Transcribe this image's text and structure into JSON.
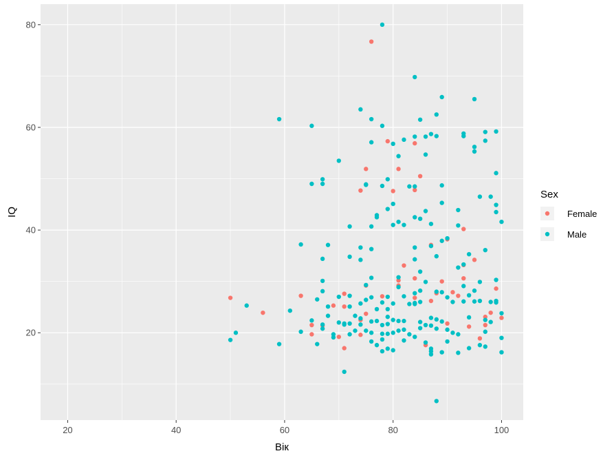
{
  "chart_data": {
    "type": "scatter",
    "title": "",
    "xlabel": "Вік",
    "ylabel": "IQ",
    "xlim": [
      15,
      104
    ],
    "ylim": [
      3,
      84
    ],
    "x_ticks": [
      20,
      40,
      60,
      80,
      100
    ],
    "y_ticks": [
      20,
      40,
      60,
      80
    ],
    "x_tick_labels": [
      "20",
      "40",
      "60",
      "80",
      "100"
    ],
    "y_tick_labels": [
      "20",
      "40",
      "60",
      "80"
    ],
    "grid": true,
    "background": "#ebebeb",
    "grid_color": "#ffffff",
    "legend": {
      "title": "Sex",
      "placement": "right",
      "entries": [
        {
          "label": "Female",
          "color": "#f8766d"
        },
        {
          "label": "Male",
          "color": "#00bfc4"
        }
      ]
    },
    "series": [
      {
        "name": "Female",
        "color": "#f8766d",
        "points": [
          [
            50,
            26.8
          ],
          [
            56,
            23.9
          ],
          [
            63,
            27.2
          ],
          [
            65,
            19.7
          ],
          [
            65,
            21.5
          ],
          [
            67,
            21.4
          ],
          [
            69,
            25.3
          ],
          [
            70,
            19.2
          ],
          [
            71,
            17.0
          ],
          [
            71,
            25.1
          ],
          [
            71,
            27.6
          ],
          [
            74,
            19.6
          ],
          [
            74,
            22.5
          ],
          [
            74,
            47.7
          ],
          [
            75,
            51.9
          ],
          [
            75,
            29.2
          ],
          [
            75,
            23.7
          ],
          [
            76,
            76.7
          ],
          [
            78,
            27.1
          ],
          [
            79,
            57.3
          ],
          [
            80,
            47.6
          ],
          [
            81,
            29.2
          ],
          [
            81,
            30.2
          ],
          [
            81,
            51.9
          ],
          [
            82,
            33.1
          ],
          [
            84,
            56.9
          ],
          [
            84,
            47.8
          ],
          [
            84,
            30.6
          ],
          [
            84,
            26.8
          ],
          [
            85,
            50.5
          ],
          [
            86,
            17.6
          ],
          [
            87,
            37.1
          ],
          [
            87,
            26.2
          ],
          [
            88,
            27.7
          ],
          [
            89,
            30.0
          ],
          [
            90,
            38.2
          ],
          [
            90,
            21.8
          ],
          [
            91,
            27.9
          ],
          [
            92,
            27.2
          ],
          [
            93,
            40.2
          ],
          [
            93,
            33.2
          ],
          [
            93,
            30.6
          ],
          [
            94,
            21.2
          ],
          [
            95,
            34.2
          ],
          [
            96,
            18.9
          ],
          [
            97,
            21.5
          ],
          [
            97,
            23.1
          ],
          [
            98,
            23.9
          ],
          [
            99,
            28.6
          ],
          [
            100,
            22.9
          ]
        ]
      },
      {
        "name": "Male",
        "color": "#00bfc4",
        "points": [
          [
            50,
            18.6
          ],
          [
            51,
            20.0
          ],
          [
            53,
            25.3
          ],
          [
            59,
            61.6
          ],
          [
            59,
            17.8
          ],
          [
            61,
            24.3
          ],
          [
            63,
            37.2
          ],
          [
            63,
            20.2
          ],
          [
            65,
            60.3
          ],
          [
            65,
            49.0
          ],
          [
            65,
            22.4
          ],
          [
            66,
            26.5
          ],
          [
            66,
            17.8
          ],
          [
            67,
            49.9
          ],
          [
            67,
            49.0
          ],
          [
            67,
            34.4
          ],
          [
            67,
            30.1
          ],
          [
            67,
            28.1
          ],
          [
            67,
            21.6
          ],
          [
            67,
            20.8
          ],
          [
            68,
            37.1
          ],
          [
            68,
            25.1
          ],
          [
            68,
            23.3
          ],
          [
            69,
            19.7
          ],
          [
            69,
            19.1
          ],
          [
            70,
            53.5
          ],
          [
            70,
            27.0
          ],
          [
            70,
            22.0
          ],
          [
            71,
            21.8
          ],
          [
            71,
            21.6
          ],
          [
            71,
            12.4
          ],
          [
            72,
            40.7
          ],
          [
            72,
            34.8
          ],
          [
            72,
            27.2
          ],
          [
            72,
            25.1
          ],
          [
            72,
            21.8
          ],
          [
            72,
            19.7
          ],
          [
            73,
            23.3
          ],
          [
            73,
            20.4
          ],
          [
            74,
            63.5
          ],
          [
            74,
            36.6
          ],
          [
            74,
            34.2
          ],
          [
            74,
            25.7
          ],
          [
            74,
            22.8
          ],
          [
            74,
            21.6
          ],
          [
            75,
            48.8
          ],
          [
            75,
            48.9
          ],
          [
            75,
            29.3
          ],
          [
            75,
            26.4
          ],
          [
            75,
            20.4
          ],
          [
            76,
            61.6
          ],
          [
            76,
            57.1
          ],
          [
            76,
            40.7
          ],
          [
            76,
            36.3
          ],
          [
            76,
            30.7
          ],
          [
            76,
            26.9
          ],
          [
            76,
            22.2
          ],
          [
            76,
            20.0
          ],
          [
            76,
            18.3
          ],
          [
            77,
            42.9
          ],
          [
            77,
            42.5
          ],
          [
            77,
            24.6
          ],
          [
            77,
            22.3
          ],
          [
            77,
            17.6
          ],
          [
            78,
            80.0
          ],
          [
            78,
            60.3
          ],
          [
            78,
            48.6
          ],
          [
            78,
            25.9
          ],
          [
            78,
            21.5
          ],
          [
            78,
            19.8
          ],
          [
            78,
            18.7
          ],
          [
            78,
            16.4
          ],
          [
            79,
            49.9
          ],
          [
            79,
            44.1
          ],
          [
            79,
            27.0
          ],
          [
            79,
            24.6
          ],
          [
            79,
            23.1
          ],
          [
            79,
            21.7
          ],
          [
            79,
            19.8
          ],
          [
            79,
            16.9
          ],
          [
            80,
            56.8
          ],
          [
            80,
            45.1
          ],
          [
            80,
            41.0
          ],
          [
            80,
            25.7
          ],
          [
            80,
            22.5
          ],
          [
            80,
            20.0
          ],
          [
            80,
            16.6
          ],
          [
            81,
            54.4
          ],
          [
            81,
            41.6
          ],
          [
            81,
            30.8
          ],
          [
            81,
            28.9
          ],
          [
            81,
            22.3
          ],
          [
            81,
            20.4
          ],
          [
            82,
            57.6
          ],
          [
            82,
            41.0
          ],
          [
            82,
            27.1
          ],
          [
            82,
            22.3
          ],
          [
            82,
            20.6
          ],
          [
            82,
            18.5
          ],
          [
            83,
            48.5
          ],
          [
            83,
            25.6
          ],
          [
            83,
            19.7
          ],
          [
            84,
            69.8
          ],
          [
            84,
            58.2
          ],
          [
            84,
            48.5
          ],
          [
            84,
            42.5
          ],
          [
            84,
            36.6
          ],
          [
            84,
            34.3
          ],
          [
            84,
            27.7
          ],
          [
            84,
            25.8
          ],
          [
            84,
            25.6
          ],
          [
            84,
            19.2
          ],
          [
            85,
            61.5
          ],
          [
            85,
            42.2
          ],
          [
            85,
            31.9
          ],
          [
            85,
            28.2
          ],
          [
            85,
            26.0
          ],
          [
            85,
            22.1
          ],
          [
            85,
            20.9
          ],
          [
            86,
            58.2
          ],
          [
            86,
            54.7
          ],
          [
            86,
            43.7
          ],
          [
            86,
            29.9
          ],
          [
            86,
            21.5
          ],
          [
            86,
            18.1
          ],
          [
            87,
            58.7
          ],
          [
            87,
            41.2
          ],
          [
            87,
            36.9
          ],
          [
            87,
            22.9
          ],
          [
            87,
            21.4
          ],
          [
            87,
            16.9
          ],
          [
            87,
            16.4
          ],
          [
            87,
            15.8
          ],
          [
            88,
            62.5
          ],
          [
            88,
            58.3
          ],
          [
            88,
            34.9
          ],
          [
            88,
            28.0
          ],
          [
            88,
            22.6
          ],
          [
            88,
            20.8
          ],
          [
            88,
            6.7
          ],
          [
            89,
            65.9
          ],
          [
            89,
            48.7
          ],
          [
            89,
            45.3
          ],
          [
            89,
            37.9
          ],
          [
            89,
            27.9
          ],
          [
            89,
            22.2
          ],
          [
            89,
            16.2
          ],
          [
            90,
            38.4
          ],
          [
            90,
            26.9
          ],
          [
            90,
            20.6
          ],
          [
            90,
            18.3
          ],
          [
            91,
            26.0
          ],
          [
            91,
            20.0
          ],
          [
            92,
            43.9
          ],
          [
            92,
            40.9
          ],
          [
            92,
            32.7
          ],
          [
            92,
            19.7
          ],
          [
            92,
            16.1
          ],
          [
            93,
            58.8
          ],
          [
            93,
            58.3
          ],
          [
            93,
            33.3
          ],
          [
            93,
            29.1
          ],
          [
            93,
            26.1
          ],
          [
            94,
            35.3
          ],
          [
            94,
            27.3
          ],
          [
            94,
            23.0
          ],
          [
            94,
            17.0
          ],
          [
            95,
            65.5
          ],
          [
            95,
            56.2
          ],
          [
            95,
            55.3
          ],
          [
            95,
            28.2
          ],
          [
            95,
            26.1
          ],
          [
            96,
            46.5
          ],
          [
            96,
            29.9
          ],
          [
            96,
            26.2
          ],
          [
            96,
            17.6
          ],
          [
            97,
            59.1
          ],
          [
            97,
            57.4
          ],
          [
            97,
            36.1
          ],
          [
            97,
            22.5
          ],
          [
            97,
            20.2
          ],
          [
            97,
            17.3
          ],
          [
            98,
            46.5
          ],
          [
            98,
            26.0
          ],
          [
            98,
            22.1
          ],
          [
            99,
            59.2
          ],
          [
            99,
            51.1
          ],
          [
            99,
            44.9
          ],
          [
            99,
            43.5
          ],
          [
            99,
            30.3
          ],
          [
            99,
            26.2
          ],
          [
            99,
            25.9
          ],
          [
            100,
            41.6
          ],
          [
            100,
            23.8
          ],
          [
            100,
            19.0
          ],
          [
            100,
            16.2
          ]
        ]
      }
    ]
  }
}
